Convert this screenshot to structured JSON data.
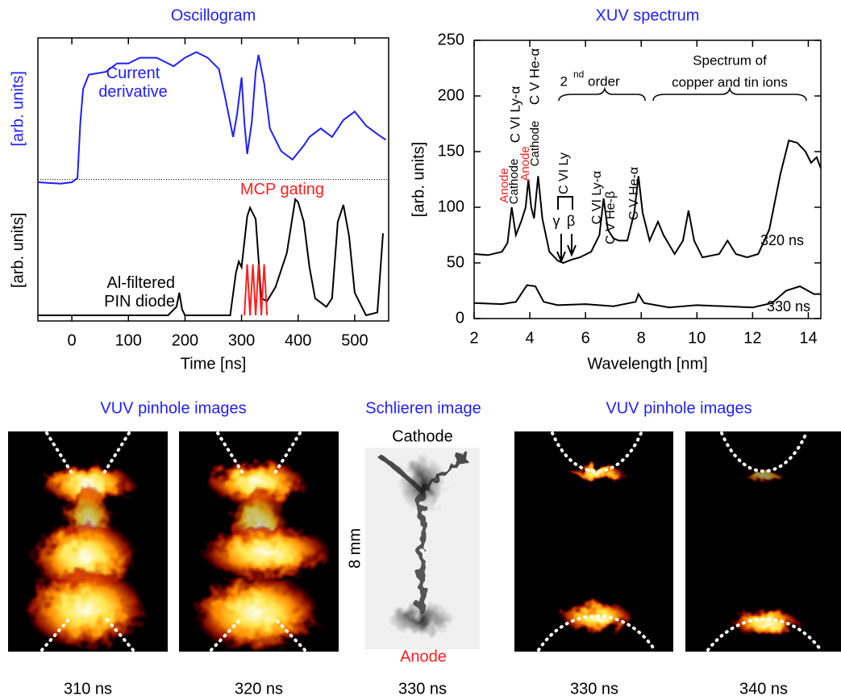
{
  "chart_data": [
    {
      "type": "line",
      "title": "Oscillogram",
      "xlabel": "Time [ns]",
      "ylabels": [
        {
          "text": "[arb. units]",
          "color": "#1f1fff"
        },
        {
          "text": "[arb. units]",
          "color": "#000000"
        }
      ],
      "xlim": [
        -60,
        560
      ],
      "xticks": [
        0,
        100,
        200,
        300,
        400,
        500
      ],
      "ylim": [
        0,
        100
      ],
      "series": [
        {
          "name": "Current derivative",
          "color": "#1f1fff",
          "x": [
            -60,
            -20,
            0,
            10,
            15,
            20,
            30,
            60,
            80,
            100,
            120,
            150,
            180,
            200,
            220,
            240,
            260,
            270,
            285,
            292,
            300,
            305,
            310,
            318,
            325,
            330,
            340,
            350,
            370,
            390,
            410,
            420,
            440,
            460,
            480,
            500,
            520,
            540,
            555
          ],
          "values": [
            49,
            48.5,
            49,
            50.5,
            70,
            82,
            87,
            88,
            91,
            91,
            93,
            93,
            90,
            93,
            95,
            93,
            89,
            80,
            65,
            73,
            86,
            70,
            59,
            70,
            88,
            94,
            84,
            68,
            60,
            57,
            62,
            65,
            68,
            65,
            71,
            74,
            69,
            66,
            64
          ]
        },
        {
          "name": "Al-filtered PIN diode",
          "color": "#000000",
          "x": [
            -60,
            170,
            185,
            190,
            195,
            200,
            280,
            290,
            295,
            300,
            310,
            315,
            325,
            335,
            345,
            360,
            380,
            395,
            400,
            410,
            420,
            430,
            450,
            460,
            470,
            480,
            490,
            500,
            520,
            540,
            550
          ],
          "values": [
            2,
            2,
            5,
            10,
            4,
            2,
            2,
            17,
            21,
            19,
            37,
            40,
            36,
            8,
            7,
            12,
            24,
            43,
            42,
            35,
            19,
            8,
            5,
            8,
            35,
            41,
            30,
            10,
            2,
            3,
            31
          ]
        },
        {
          "name": "MCP gating",
          "color": "#ff2020",
          "x": [
            305,
            310,
            315,
            320,
            325,
            330,
            335,
            340,
            345
          ],
          "values": [
            2,
            20,
            2,
            20,
            2,
            20,
            2,
            20,
            2
          ]
        }
      ]
    },
    {
      "type": "line",
      "title": "XUV spectrum",
      "xlabel": "Wavelength [nm]",
      "ylabel": "[arb. units]",
      "xlim": [
        2,
        14.45
      ],
      "xticks": [
        2,
        4,
        6,
        8,
        10,
        12,
        14
      ],
      "ylim": [
        0,
        250
      ],
      "yticks": [
        0,
        50,
        100,
        150,
        200,
        250
      ],
      "series": [
        {
          "name": "320 ns",
          "color": "#000000",
          "x": [
            2,
            2.5,
            3,
            3.2,
            3.35,
            3.5,
            3.7,
            3.85,
            3.95,
            4.05,
            4.15,
            4.3,
            4.45,
            4.7,
            5,
            5.2,
            5.5,
            5.8,
            6.2,
            6.5,
            6.65,
            6.8,
            7.0,
            7.2,
            7.5,
            7.75,
            7.9,
            8.05,
            8.3,
            8.6,
            8.8,
            9.2,
            9.5,
            9.7,
            9.9,
            10.2,
            10.8,
            11.1,
            11.4,
            11.8,
            12.2,
            12.6,
            13,
            13.3,
            13.6,
            13.9,
            14.1,
            14.3,
            14.45
          ],
          "values": [
            58,
            57,
            60,
            68,
            100,
            75,
            88,
            100,
            125,
            100,
            90,
            128,
            90,
            60,
            52,
            50,
            53,
            55,
            60,
            75,
            108,
            80,
            72,
            70,
            70,
            95,
            128,
            95,
            70,
            87,
            75,
            58,
            70,
            97,
            70,
            55,
            58,
            70,
            58,
            55,
            58,
            80,
            130,
            160,
            158,
            150,
            140,
            145,
            135
          ]
        },
        {
          "name": "330 ns",
          "color": "#000000",
          "x": [
            2,
            3,
            3.5,
            3.9,
            4.2,
            4.5,
            5,
            6,
            7,
            7.8,
            7.9,
            8.1,
            9,
            10,
            11,
            12,
            12.7,
            13.2,
            13.7,
            14.2,
            14.45
          ],
          "values": [
            14,
            13,
            15,
            30,
            29,
            15,
            12,
            13,
            11,
            15,
            22,
            14,
            10,
            12,
            11,
            10,
            14,
            25,
            29,
            22,
            22
          ]
        }
      ],
      "annotations": [
        {
          "text": "Anode",
          "color": "#ff2020"
        },
        {
          "text": "Cathode",
          "color": "#000000"
        },
        {
          "text": "C VI Ly-α",
          "color": "#000000"
        },
        {
          "text": "Anode",
          "color": "#ff2020"
        },
        {
          "text": "Cathode",
          "color": "#000000"
        },
        {
          "text": "C V He-α",
          "color": "#000000"
        },
        {
          "text": "C VI Ly",
          "color": "#000000"
        },
        {
          "text": "γ",
          "color": "#000000"
        },
        {
          "text": "β",
          "color": "#000000"
        },
        {
          "text": "C VI Ly-α",
          "color": "#000000"
        },
        {
          "text": "C V He-β",
          "color": "#000000"
        },
        {
          "text": "C V He-α",
          "color": "#000000"
        },
        {
          "text": "2",
          "color": "#000000"
        },
        {
          "text": "nd",
          "color": "#000000"
        },
        {
          "text": "order",
          "color": "#000000"
        },
        {
          "text": "Spectrum of",
          "color": "#000000"
        },
        {
          "text": "copper and tin ions",
          "color": "#000000"
        }
      ]
    }
  ],
  "images": {
    "titles": [
      "VUV pinhole images",
      "Schlieren image",
      "VUV pinhole images"
    ],
    "captions": [
      "310 ns",
      "320 ns",
      "330 ns",
      "330 ns",
      "340 ns"
    ],
    "schlieren": {
      "top": "Cathode",
      "bottom": "Anode",
      "scale": "8 mm"
    }
  }
}
